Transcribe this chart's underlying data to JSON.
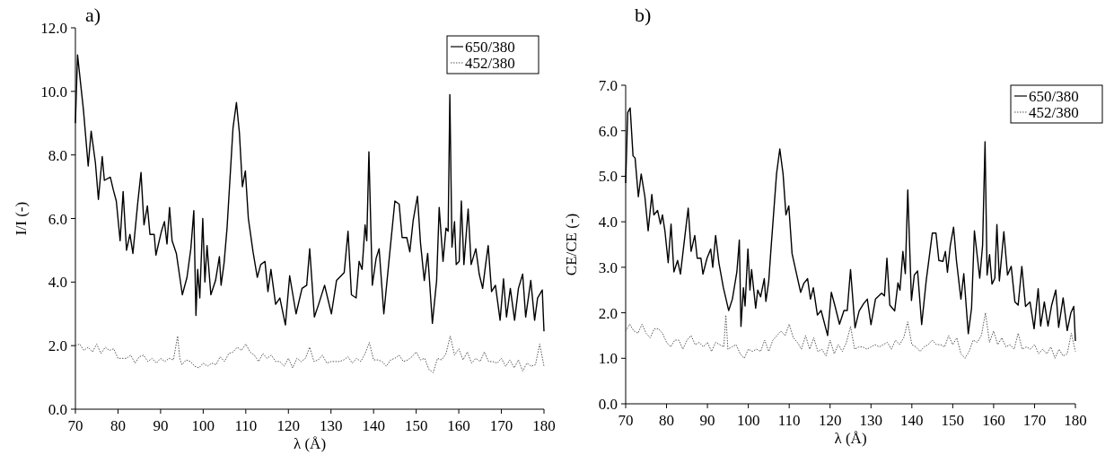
{
  "chart_data": [
    {
      "type": "line",
      "title": "a)",
      "xlabel": "λ (Å)",
      "ylabel": "I/I (-)",
      "xlim": [
        70,
        180
      ],
      "xticks": [
        70,
        80,
        90,
        100,
        110,
        120,
        130,
        140,
        150,
        160,
        170,
        180
      ],
      "ylim": [
        0,
        12
      ],
      "yticks": [
        {
          "value": 0,
          "label": "0.0"
        },
        {
          "value": 2,
          "label": "2.0"
        },
        {
          "value": 4,
          "label": "4.0"
        },
        {
          "value": 6,
          "label": "6.0"
        },
        {
          "value": 8,
          "label": "8.0"
        },
        {
          "value": 10,
          "label": "10.0"
        },
        {
          "value": 12,
          "label": "12.0"
        }
      ],
      "legend": "top right",
      "grid": false,
      "series": [
        {
          "name": "650/380",
          "color": "#000000",
          "line_style": "solid",
          "x": [
            70,
            70.5,
            71.9,
            73,
            73.7,
            74.7,
            75.4,
            76.3,
            76.8,
            78.2,
            78.9,
            79.6,
            80.5,
            81.2,
            82,
            82.8,
            83.5,
            84.6,
            85.4,
            86.1,
            86.9,
            87.5,
            88.5,
            88.9,
            90.2,
            90.9,
            91.5,
            92.1,
            92.7,
            93.7,
            95.1,
            96.2,
            97.1,
            97.8,
            98.3,
            98.7,
            99.2,
            99.9,
            100.4,
            100.9,
            101.8,
            102.9,
            103.8,
            104.2,
            104.9,
            105.6,
            107,
            107.8,
            108.5,
            109.2,
            109.9,
            110.6,
            111.7,
            112.7,
            113.5,
            114.5,
            115.2,
            115.9,
            117,
            118,
            119.3,
            120.3,
            121.8,
            123.2,
            124.3,
            125,
            126.1,
            127.1,
            128.5,
            130.1,
            131.3,
            133.1,
            134,
            134.8,
            135.9,
            136.6,
            137.3,
            138,
            138.4,
            138.9,
            139.7,
            140.6,
            141.3,
            142.4,
            143.6,
            145,
            146,
            146.7,
            147.8,
            148.5,
            149.3,
            150.3,
            151,
            151.9,
            152.7,
            153.8,
            154.8,
            155.4,
            156.3,
            157,
            157.5,
            157.9,
            158.4,
            159,
            159.4,
            160.1,
            160.6,
            161.2,
            162.2,
            162.9,
            164,
            164.8,
            165.6,
            166.3,
            166.9,
            167.7,
            168.6,
            169.7,
            170.5,
            171.2,
            172.1,
            173.1,
            174,
            175,
            175.7,
            176.9,
            177.8,
            178.5,
            179.6,
            180
          ],
          "values": [
            9.0,
            11.15,
            9.4,
            7.65,
            8.75,
            7.75,
            6.6,
            7.95,
            7.2,
            7.3,
            6.9,
            6.55,
            5.3,
            6.85,
            5.0,
            5.5,
            4.9,
            6.45,
            7.45,
            5.8,
            6.4,
            5.5,
            5.5,
            4.85,
            5.6,
            5.9,
            5.2,
            6.35,
            5.3,
            4.9,
            3.6,
            4.15,
            5.05,
            6.25,
            2.95,
            4.4,
            3.5,
            6.0,
            4.0,
            5.15,
            3.6,
            4.05,
            4.8,
            3.9,
            4.6,
            5.7,
            8.85,
            9.65,
            8.7,
            7.0,
            7.5,
            6.0,
            4.95,
            4.15,
            4.55,
            4.65,
            3.7,
            4.4,
            3.3,
            3.5,
            2.65,
            4.2,
            3.0,
            3.8,
            3.9,
            5.05,
            2.9,
            3.3,
            3.9,
            3.0,
            4.05,
            4.3,
            5.6,
            3.6,
            3.5,
            4.65,
            4.4,
            5.8,
            5.3,
            8.1,
            3.9,
            4.75,
            5.05,
            3.0,
            4.65,
            6.55,
            6.45,
            5.4,
            5.4,
            4.95,
            5.95,
            6.7,
            5.25,
            4.05,
            4.9,
            2.7,
            4.05,
            6.35,
            4.65,
            5.7,
            5.6,
            9.9,
            5.1,
            5.9,
            4.55,
            4.65,
            6.55,
            4.55,
            6.3,
            4.55,
            5.05,
            4.25,
            3.8,
            4.55,
            5.15,
            3.7,
            3.9,
            2.8,
            4.1,
            2.9,
            3.8,
            2.8,
            3.8,
            4.25,
            2.9,
            4.05,
            2.8,
            3.5,
            3.75,
            2.45
          ]
        },
        {
          "name": "452/380",
          "color": "#555555",
          "line_style": "dotted",
          "x": [
            70,
            71,
            72,
            73,
            74,
            75,
            76,
            77,
            78,
            79,
            80,
            82,
            83,
            84,
            85,
            86,
            87,
            88,
            89,
            90,
            91,
            92,
            93,
            94,
            94.5,
            95,
            96,
            97,
            98,
            99,
            100,
            101,
            102,
            103,
            104,
            105,
            106,
            107,
            108,
            109,
            110,
            111,
            112,
            113,
            114,
            115,
            116,
            117,
            118,
            119,
            120,
            121,
            122,
            123,
            124,
            125,
            126,
            127,
            128,
            129,
            130,
            131,
            132,
            133,
            134,
            135,
            136,
            137,
            138,
            139,
            140,
            141,
            142,
            143,
            144,
            145,
            146,
            147,
            148,
            149,
            150,
            151,
            152,
            153,
            154,
            155,
            156,
            157,
            158,
            159,
            160,
            161,
            162,
            163,
            164,
            165,
            166,
            167,
            168,
            169,
            170,
            171,
            172,
            173,
            174,
            175,
            176,
            177,
            178,
            179,
            180
          ],
          "values": [
            2.0,
            2.05,
            1.85,
            1.95,
            1.8,
            2.05,
            1.75,
            1.95,
            1.85,
            1.9,
            1.6,
            1.6,
            1.7,
            1.45,
            1.65,
            1.7,
            1.5,
            1.6,
            1.45,
            1.6,
            1.5,
            1.6,
            1.55,
            2.3,
            1.6,
            1.4,
            1.55,
            1.5,
            1.35,
            1.3,
            1.45,
            1.35,
            1.45,
            1.4,
            1.65,
            1.5,
            1.75,
            1.8,
            1.95,
            1.85,
            2.05,
            1.8,
            1.7,
            1.5,
            1.75,
            1.6,
            1.7,
            1.5,
            1.5,
            1.35,
            1.6,
            1.3,
            1.6,
            1.5,
            1.6,
            1.95,
            1.5,
            1.55,
            1.7,
            1.45,
            1.5,
            1.5,
            1.5,
            1.55,
            1.65,
            1.45,
            1.6,
            1.5,
            1.75,
            2.1,
            1.55,
            1.55,
            1.5,
            1.35,
            1.55,
            1.6,
            1.7,
            1.5,
            1.55,
            1.65,
            1.8,
            1.55,
            1.6,
            1.25,
            1.15,
            1.6,
            1.55,
            1.75,
            2.3,
            1.7,
            1.9,
            1.55,
            1.8,
            1.45,
            1.6,
            1.5,
            1.8,
            1.5,
            1.5,
            1.45,
            1.6,
            1.35,
            1.55,
            1.3,
            1.55,
            1.2,
            1.45,
            1.35,
            1.4,
            2.05,
            1.35
          ]
        }
      ]
    },
    {
      "type": "line",
      "title": "b)",
      "xlabel": "λ (Å)",
      "ylabel": "CE/CE (-)",
      "xlim": [
        70,
        180
      ],
      "xticks": [
        70,
        80,
        90,
        100,
        110,
        120,
        130,
        140,
        150,
        160,
        170,
        180
      ],
      "ylim": [
        0,
        7
      ],
      "yticks": [
        {
          "value": 0,
          "label": "0.0"
        },
        {
          "value": 1,
          "label": "1.0"
        },
        {
          "value": 2,
          "label": "2.0"
        },
        {
          "value": 3,
          "label": "3.0"
        },
        {
          "value": 4,
          "label": "4.0"
        },
        {
          "value": 5,
          "label": "5.0"
        },
        {
          "value": 6,
          "label": "6.0"
        },
        {
          "value": 7,
          "label": "7.0"
        }
      ],
      "legend": "top right",
      "grid": false,
      "series": [
        {
          "name": "650/380",
          "color": "#000000",
          "line_style": "solid",
          "x": [
            70,
            70.5,
            71.1,
            71.8,
            72.3,
            73.1,
            73.8,
            74.7,
            75.5,
            76.4,
            76.9,
            77.8,
            78.5,
            79,
            79.6,
            80.4,
            81.1,
            81.8,
            82.7,
            83.4,
            84.5,
            85.3,
            86,
            86.9,
            87.5,
            88.4,
            88.9,
            89.9,
            90.8,
            91.3,
            92,
            92.8,
            93.9,
            95.2,
            96.1,
            97.2,
            97.8,
            98.2,
            98.8,
            99.2,
            99.9,
            100.4,
            100.8,
            101.8,
            102.3,
            103,
            103.9,
            104.3,
            105,
            105.5,
            106.9,
            107.7,
            108.5,
            109.2,
            109.9,
            110.7,
            111.8,
            112.8,
            113.6,
            114.5,
            115.2,
            115.9,
            116.9,
            117.8,
            119.4,
            120.3,
            121.2,
            122.3,
            123.4,
            124.2,
            125,
            126.1,
            127.1,
            128.2,
            129.1,
            130,
            131.1,
            132.6,
            133.3,
            133.9,
            134.6,
            135.8,
            136.6,
            137.1,
            137.8,
            138.4,
            139,
            139.9,
            140.6,
            141.4,
            142.4,
            143.5,
            145,
            145.9,
            146.6,
            147.6,
            148.2,
            148.7,
            149.4,
            150.2,
            150.9,
            152,
            152.7,
            153.8,
            154.6,
            155.3,
            156.6,
            157.3,
            157.9,
            158.4,
            159,
            159.6,
            160.3,
            160.8,
            161.4,
            162.5,
            163.4,
            164.3,
            165.2,
            166,
            166.9,
            167.8,
            168.9,
            169.9,
            170.9,
            171.5,
            172.4,
            173.3,
            174.2,
            175.2,
            175.9,
            177,
            178,
            178.9,
            179.6,
            180
          ],
          "values": [
            4.85,
            6.4,
            6.5,
            5.45,
            5.4,
            4.55,
            5.05,
            4.55,
            3.8,
            4.6,
            4.15,
            4.25,
            3.95,
            4.15,
            3.8,
            3.1,
            3.95,
            2.9,
            3.15,
            2.85,
            3.7,
            4.3,
            3.35,
            3.7,
            3.2,
            3.2,
            2.85,
            3.2,
            3.4,
            3.0,
            3.7,
            3.1,
            2.55,
            2.05,
            2.3,
            2.9,
            3.6,
            1.7,
            2.55,
            2.15,
            3.4,
            2.5,
            2.95,
            2.1,
            2.5,
            2.35,
            2.75,
            2.25,
            2.7,
            3.35,
            5.05,
            5.6,
            5.05,
            4.15,
            4.35,
            3.3,
            2.85,
            2.45,
            2.65,
            2.75,
            2.3,
            2.55,
            1.95,
            2.05,
            1.5,
            2.45,
            2.15,
            1.75,
            2.05,
            2.05,
            2.95,
            1.67,
            2.04,
            2.2,
            2.3,
            1.74,
            2.3,
            2.43,
            2.37,
            3.2,
            2.17,
            2.04,
            2.66,
            2.5,
            3.35,
            2.86,
            4.7,
            2.27,
            2.83,
            2.92,
            1.74,
            2.7,
            3.75,
            3.75,
            3.15,
            3.13,
            3.35,
            2.89,
            3.48,
            3.88,
            3.15,
            2.3,
            2.86,
            1.54,
            2.1,
            3.8,
            2.76,
            3.48,
            5.76,
            2.83,
            3.28,
            2.63,
            2.76,
            3.94,
            2.7,
            3.78,
            2.83,
            3.02,
            2.24,
            2.17,
            3.02,
            2.14,
            2.24,
            1.65,
            2.53,
            1.71,
            2.24,
            1.71,
            2.17,
            2.5,
            1.68,
            2.33,
            1.61,
            2.0,
            2.14,
            1.38
          ]
        },
        {
          "name": "452/380",
          "color": "#555555",
          "line_style": "dotted",
          "x": [
            70,
            71,
            72,
            73,
            74,
            75,
            76,
            77,
            78,
            79,
            80,
            81,
            82,
            83,
            84,
            85,
            86,
            87,
            88,
            89,
            90,
            91,
            92,
            93,
            94,
            94.5,
            95,
            96,
            97,
            98,
            99,
            100,
            101,
            102,
            103,
            104,
            105,
            106,
            107,
            108,
            109,
            110,
            111,
            112,
            113,
            114,
            115,
            116,
            117,
            118,
            119,
            120,
            121,
            122,
            123,
            124,
            125,
            126,
            127,
            128,
            129,
            130,
            131,
            132,
            133,
            134,
            135,
            136,
            137,
            138,
            139,
            140,
            141,
            142,
            143,
            144,
            145,
            146,
            147,
            148,
            149,
            150,
            151,
            152,
            153,
            154,
            155,
            156,
            157,
            158,
            159,
            160,
            161,
            162,
            163,
            164,
            165,
            166,
            167,
            168,
            169,
            170,
            171,
            172,
            173,
            174,
            175,
            176,
            177,
            178,
            179,
            180
          ],
          "values": [
            1.6,
            1.75,
            1.6,
            1.55,
            1.75,
            1.55,
            1.45,
            1.65,
            1.65,
            1.55,
            1.35,
            1.25,
            1.4,
            1.4,
            1.2,
            1.4,
            1.5,
            1.3,
            1.35,
            1.25,
            1.35,
            1.15,
            1.35,
            1.3,
            1.25,
            1.95,
            1.2,
            1.25,
            1.3,
            1.1,
            1.0,
            1.2,
            1.15,
            1.2,
            1.15,
            1.4,
            1.15,
            1.4,
            1.5,
            1.6,
            1.5,
            1.75,
            1.45,
            1.35,
            1.2,
            1.5,
            1.2,
            1.45,
            1.15,
            1.2,
            1.05,
            1.4,
            1.1,
            1.3,
            1.15,
            1.35,
            1.7,
            1.2,
            1.25,
            1.25,
            1.2,
            1.25,
            1.3,
            1.25,
            1.3,
            1.35,
            1.2,
            1.4,
            1.3,
            1.45,
            1.8,
            1.3,
            1.25,
            1.15,
            1.25,
            1.3,
            1.4,
            1.3,
            1.3,
            1.25,
            1.5,
            1.3,
            1.45,
            1.1,
            1.0,
            1.15,
            1.4,
            1.35,
            1.5,
            2.0,
            1.35,
            1.6,
            1.3,
            1.45,
            1.25,
            1.3,
            1.2,
            1.55,
            1.2,
            1.25,
            1.2,
            1.3,
            1.1,
            1.2,
            1.1,
            1.25,
            1.0,
            1.2,
            1.05,
            1.1,
            1.55,
            1.15
          ]
        }
      ]
    }
  ]
}
